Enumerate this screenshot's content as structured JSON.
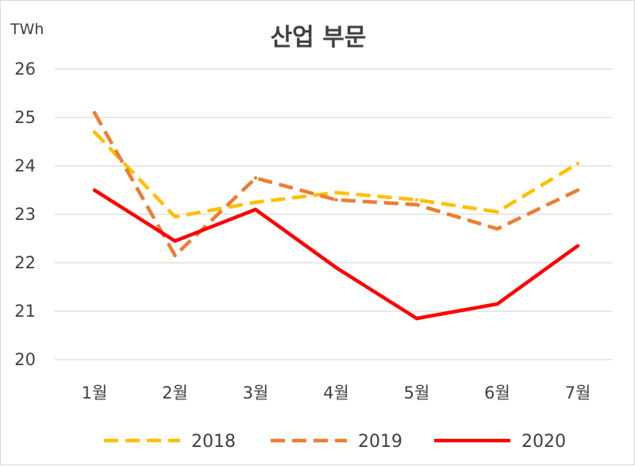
{
  "chart_data": {
    "type": "line",
    "title": "산업 부문",
    "unit_label": "TWh",
    "categories": [
      "1월",
      "2월",
      "3월",
      "4월",
      "5월",
      "6월",
      "7월"
    ],
    "ylim": [
      20,
      26
    ],
    "yticks": [
      "20",
      "21",
      "22",
      "23",
      "24",
      "25",
      "26"
    ],
    "grid": true,
    "legend_position": "bottom",
    "series": [
      {
        "name": "2018",
        "color": "#FFC000",
        "style": "dashed",
        "values": [
          24.7,
          22.95,
          23.25,
          23.45,
          23.3,
          23.05,
          24.05
        ]
      },
      {
        "name": "2019",
        "color": "#ED7D31",
        "style": "dashed",
        "values": [
          25.1,
          22.15,
          23.75,
          23.3,
          23.2,
          22.7,
          23.5
        ]
      },
      {
        "name": "2020",
        "color": "#FF0000",
        "style": "solid",
        "values": [
          23.5,
          22.45,
          23.1,
          21.9,
          20.85,
          21.15,
          22.35
        ]
      }
    ]
  }
}
